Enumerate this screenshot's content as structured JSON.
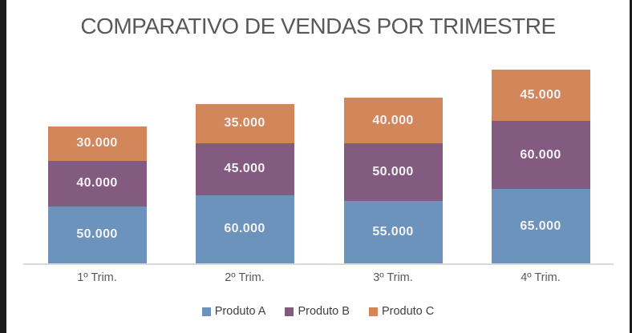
{
  "window": {
    "frame_color": "#1c1c1c",
    "background_color": "#ffffff"
  },
  "chart_data": {
    "type": "bar",
    "stacked": true,
    "title": "COMPARATIVO DE VENDAS POR TRIMESTRE",
    "title_color": "#595959",
    "categories": [
      "1º Trim.",
      "2º Trim.",
      "3º Trim.",
      "4º Trim."
    ],
    "series": [
      {
        "name": "Produto A",
        "color": "#6B93BC",
        "values": [
          50000,
          60000,
          55000,
          65000
        ],
        "labels": [
          "50.000",
          "60.000",
          "55.000",
          "65.000"
        ]
      },
      {
        "name": "Produto B",
        "color": "#835A80",
        "values": [
          40000,
          45000,
          50000,
          60000
        ],
        "labels": [
          "40.000",
          "45.000",
          "50.000",
          "60.000"
        ]
      },
      {
        "name": "Produto C",
        "color": "#D2865A",
        "values": [
          30000,
          35000,
          40000,
          45000
        ],
        "labels": [
          "30.000",
          "35.000",
          "40.000",
          "45.000"
        ]
      }
    ],
    "totals": [
      120000,
      140000,
      145000,
      170000
    ],
    "data_labels": true,
    "value_label_color": "#F2F2F2",
    "axis_line_color": "#D9D9D9",
    "x_label_color": "#595959",
    "legend_position": "bottom",
    "legend_text_color": "#404040",
    "grid": false,
    "y_axis_visible": false
  }
}
